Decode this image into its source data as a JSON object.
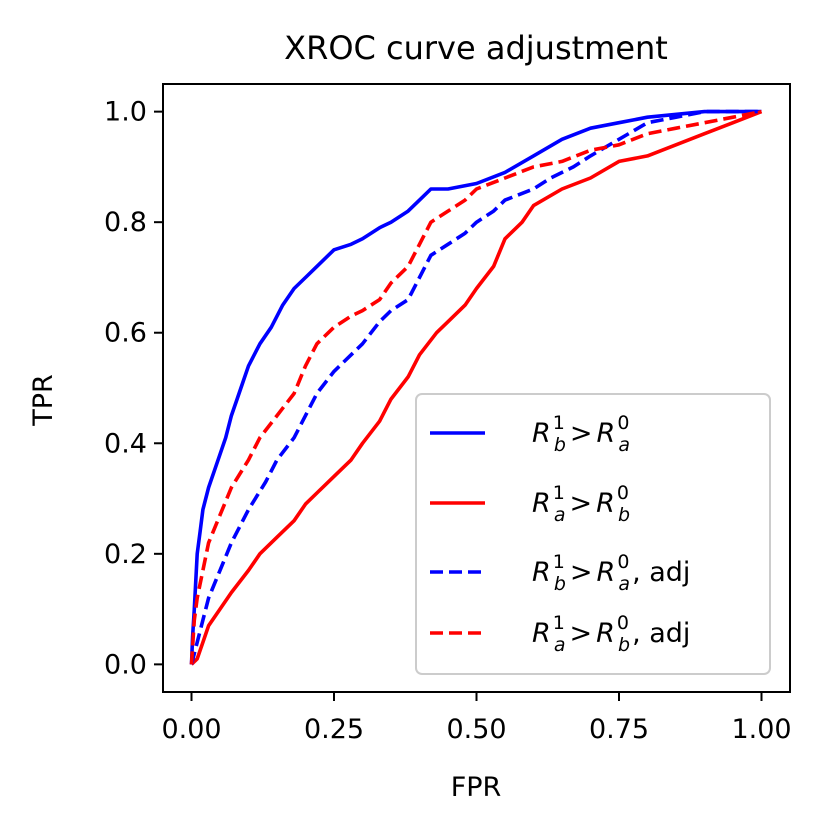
{
  "chart_data": {
    "type": "line",
    "title": "XROC curve adjustment",
    "xlabel": "FPR",
    "ylabel": "TPR",
    "xlim": [
      -0.05,
      1.05
    ],
    "ylim": [
      -0.05,
      1.05
    ],
    "xticks": [
      0.0,
      0.25,
      0.5,
      0.75,
      1.0
    ],
    "xtick_labels": [
      "0.00",
      "0.25",
      "0.50",
      "0.75",
      "1.00"
    ],
    "yticks": [
      0.0,
      0.2,
      0.4,
      0.6,
      0.8,
      1.0
    ],
    "ytick_labels": [
      "0.0",
      "0.2",
      "0.4",
      "0.6",
      "0.8",
      "1.0"
    ],
    "grid": false,
    "legend_position": "lower-right",
    "series": [
      {
        "name": "R_b^1 > R_a^0",
        "legend": {
          "base1": "R",
          "sub1": "b",
          "sup1": "1",
          "op": ">",
          "base2": "R",
          "sub2": "a",
          "sup2": "0",
          "suffix": ""
        },
        "color": "#0000ff",
        "style": "solid",
        "x": [
          0,
          0.002,
          0.005,
          0.01,
          0.015,
          0.02,
          0.03,
          0.04,
          0.05,
          0.06,
          0.07,
          0.08,
          0.09,
          0.1,
          0.12,
          0.14,
          0.16,
          0.18,
          0.2,
          0.22,
          0.25,
          0.28,
          0.3,
          0.33,
          0.35,
          0.38,
          0.4,
          0.42,
          0.45,
          0.5,
          0.55,
          0.6,
          0.65,
          0.7,
          0.75,
          0.8,
          0.9,
          1.0
        ],
        "y": [
          0,
          0.05,
          0.1,
          0.2,
          0.24,
          0.28,
          0.32,
          0.35,
          0.38,
          0.41,
          0.45,
          0.48,
          0.51,
          0.54,
          0.58,
          0.61,
          0.65,
          0.68,
          0.7,
          0.72,
          0.75,
          0.76,
          0.77,
          0.79,
          0.8,
          0.82,
          0.84,
          0.86,
          0.86,
          0.87,
          0.89,
          0.92,
          0.95,
          0.97,
          0.98,
          0.99,
          1.0,
          1.0
        ]
      },
      {
        "name": "R_a^1 > R_b^0",
        "legend": {
          "base1": "R",
          "sub1": "a",
          "sup1": "1",
          "op": ">",
          "base2": "R",
          "sub2": "b",
          "sup2": "0",
          "suffix": ""
        },
        "color": "#ff0000",
        "style": "solid",
        "x": [
          0,
          0.01,
          0.02,
          0.03,
          0.05,
          0.07,
          0.1,
          0.12,
          0.15,
          0.18,
          0.2,
          0.22,
          0.25,
          0.28,
          0.3,
          0.33,
          0.35,
          0.38,
          0.4,
          0.43,
          0.45,
          0.48,
          0.5,
          0.53,
          0.55,
          0.58,
          0.6,
          0.65,
          0.7,
          0.75,
          0.8,
          0.85,
          0.9,
          0.95,
          1.0
        ],
        "y": [
          0,
          0.01,
          0.04,
          0.07,
          0.1,
          0.13,
          0.17,
          0.2,
          0.23,
          0.26,
          0.29,
          0.31,
          0.34,
          0.37,
          0.4,
          0.44,
          0.48,
          0.52,
          0.56,
          0.6,
          0.62,
          0.65,
          0.68,
          0.72,
          0.77,
          0.8,
          0.83,
          0.86,
          0.88,
          0.91,
          0.92,
          0.94,
          0.96,
          0.98,
          1.0
        ]
      },
      {
        "name": "R_b^1 > R_a^0, adj",
        "legend": {
          "base1": "R",
          "sub1": "b",
          "sup1": "1",
          "op": ">",
          "base2": "R",
          "sub2": "a",
          "sup2": "0",
          "suffix": ", adj"
        },
        "color": "#0000ff",
        "style": "dashed",
        "x": [
          0,
          0.01,
          0.02,
          0.03,
          0.05,
          0.07,
          0.1,
          0.13,
          0.15,
          0.18,
          0.2,
          0.22,
          0.25,
          0.28,
          0.3,
          0.33,
          0.35,
          0.38,
          0.4,
          0.42,
          0.45,
          0.48,
          0.5,
          0.53,
          0.55,
          0.6,
          0.63,
          0.67,
          0.7,
          0.75,
          0.8,
          0.85,
          0.9,
          1.0
        ],
        "y": [
          0,
          0.04,
          0.08,
          0.12,
          0.17,
          0.22,
          0.28,
          0.33,
          0.37,
          0.41,
          0.45,
          0.49,
          0.53,
          0.56,
          0.58,
          0.62,
          0.64,
          0.66,
          0.7,
          0.74,
          0.76,
          0.78,
          0.8,
          0.82,
          0.84,
          0.86,
          0.88,
          0.9,
          0.92,
          0.95,
          0.98,
          0.99,
          1.0,
          1.0
        ]
      },
      {
        "name": "R_a^1 > R_b^0, adj",
        "legend": {
          "base1": "R",
          "sub1": "a",
          "sup1": "1",
          "op": ">",
          "base2": "R",
          "sub2": "b",
          "sup2": "0",
          "suffix": ", adj"
        },
        "color": "#ff0000",
        "style": "dashed",
        "x": [
          0,
          0.005,
          0.01,
          0.02,
          0.03,
          0.05,
          0.07,
          0.1,
          0.12,
          0.15,
          0.18,
          0.2,
          0.22,
          0.25,
          0.28,
          0.3,
          0.33,
          0.35,
          0.38,
          0.4,
          0.42,
          0.45,
          0.48,
          0.5,
          0.55,
          0.6,
          0.65,
          0.7,
          0.75,
          0.8,
          0.85,
          0.9,
          0.95,
          1.0
        ],
        "y": [
          0,
          0.08,
          0.12,
          0.17,
          0.22,
          0.27,
          0.32,
          0.37,
          0.41,
          0.45,
          0.49,
          0.54,
          0.58,
          0.61,
          0.63,
          0.64,
          0.66,
          0.69,
          0.72,
          0.76,
          0.8,
          0.82,
          0.84,
          0.86,
          0.88,
          0.9,
          0.91,
          0.93,
          0.94,
          0.96,
          0.97,
          0.98,
          0.99,
          1.0
        ]
      }
    ]
  }
}
